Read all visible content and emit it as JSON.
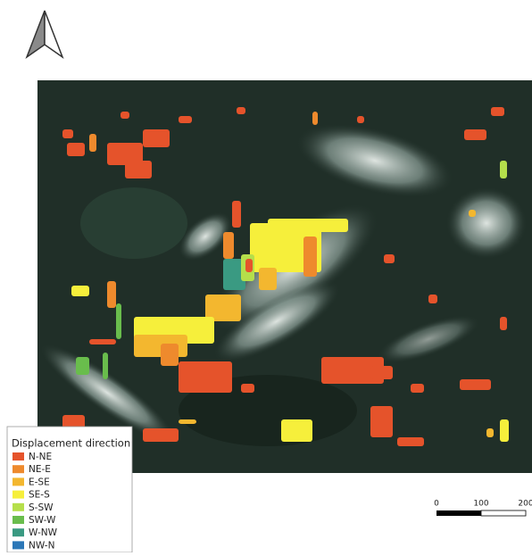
{
  "legend": {
    "title": "Displacement direction",
    "entries": [
      {
        "name": "N-NE",
        "color": "#e5532b"
      },
      {
        "name": "NE-E",
        "color": "#ee8a2d"
      },
      {
        "name": "E-SE",
        "color": "#f3b72f"
      },
      {
        "name": "SE-S",
        "color": "#f6ef3b"
      },
      {
        "name": "S-SW",
        "color": "#b5df4b"
      },
      {
        "name": "SW-W",
        "color": "#69bd4c"
      },
      {
        "name": "W-NW",
        "color": "#3a9a82"
      },
      {
        "name": "NW-N",
        "color": "#2b77b7"
      }
    ]
  },
  "scale_bar": {
    "labels": [
      0,
      100,
      200
    ]
  }
}
